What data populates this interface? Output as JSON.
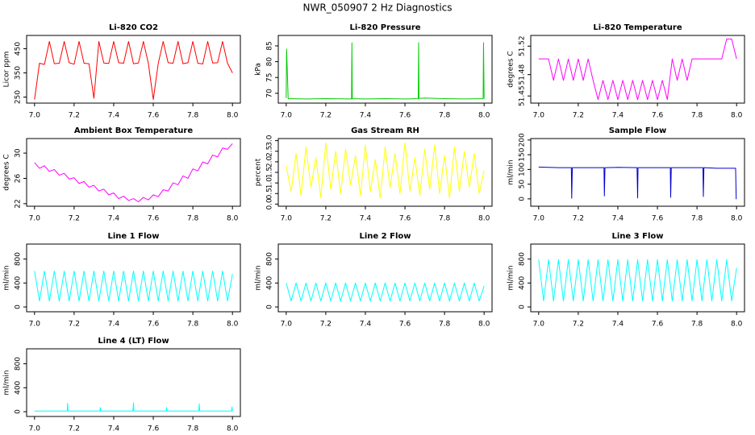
{
  "title": "NWR_050907  2 Hz Diagnostics",
  "chart_data": [
    {
      "type": "line",
      "title": "Li-820 CO2",
      "ylabel": "Licor ppm",
      "color": "#ff0000",
      "x": [
        7.0,
        7.025,
        7.05,
        7.075,
        7.1,
        7.125,
        7.15,
        7.175,
        7.2,
        7.225,
        7.25,
        7.275,
        7.3,
        7.325,
        7.35,
        7.375,
        7.4,
        7.425,
        7.45,
        7.475,
        7.5,
        7.525,
        7.55,
        7.575,
        7.6,
        7.625,
        7.65,
        7.675,
        7.7,
        7.725,
        7.75,
        7.775,
        7.8,
        7.825,
        7.85,
        7.875,
        7.9,
        7.925,
        7.95,
        7.975,
        8.0
      ],
      "values": [
        240,
        390,
        385,
        480,
        388,
        390,
        480,
        392,
        386,
        480,
        390,
        388,
        245,
        480,
        391,
        389,
        480,
        392,
        390,
        480,
        388,
        391,
        480,
        390,
        240,
        389,
        480,
        392,
        390,
        480,
        388,
        392,
        480,
        390,
        387,
        480,
        391,
        392,
        480,
        390,
        350
      ],
      "xlim": [
        6.96,
        8.04
      ],
      "xticks": [
        {
          "value": 7,
          "label": "7.0"
        },
        7.2,
        7.4,
        7.6,
        7.8,
        {
          "value": 8,
          "label": "8.0"
        }
      ],
      "ylim": [
        225,
        505
      ],
      "yticks": [
        250,
        350,
        450
      ]
    },
    {
      "type": "line",
      "title": "Li-820 Pressure",
      "ylabel": "kPa",
      "color": "#00cc00",
      "x": [
        7.0,
        7.002,
        7.01,
        7.1,
        7.2,
        7.33,
        7.332,
        7.334,
        7.4,
        7.5,
        7.6,
        7.667,
        7.669,
        7.671,
        7.7,
        7.8,
        7.9,
        7.995,
        7.997,
        8.0
      ],
      "values": [
        68.5,
        84,
        68.3,
        68.2,
        68.3,
        68.2,
        86,
        68.3,
        68.2,
        68.3,
        68.2,
        68.3,
        86,
        68.4,
        68.5,
        68.3,
        68.2,
        68.3,
        86,
        68.3
      ],
      "xlim": [
        6.96,
        8.04
      ],
      "xticks": [
        {
          "value": 7,
          "label": "7.0"
        },
        7.2,
        7.4,
        7.6,
        7.8,
        {
          "value": 8,
          "label": "8.0"
        }
      ],
      "ylim": [
        66.9,
        88.3
      ],
      "yticks": [
        70,
        75,
        80,
        85
      ]
    },
    {
      "type": "line",
      "title": "Li-820 Temperature",
      "ylabel": "degrees C",
      "color": "#ff00ff",
      "x": [
        7.0,
        7.025,
        7.05,
        7.075,
        7.1,
        7.125,
        7.15,
        7.175,
        7.2,
        7.225,
        7.25,
        7.275,
        7.3,
        7.325,
        7.35,
        7.375,
        7.4,
        7.425,
        7.45,
        7.475,
        7.5,
        7.525,
        7.55,
        7.575,
        7.6,
        7.625,
        7.65,
        7.675,
        7.7,
        7.725,
        7.75,
        7.775,
        7.8,
        7.825,
        7.85,
        7.875,
        7.9,
        7.925,
        7.95,
        7.975,
        8.0
      ],
      "values": [
        51.502,
        51.502,
        51.502,
        51.472,
        51.502,
        51.472,
        51.502,
        51.472,
        51.502,
        51.472,
        51.502,
        51.472,
        51.445,
        51.472,
        51.445,
        51.472,
        51.445,
        51.472,
        51.445,
        51.472,
        51.445,
        51.472,
        51.445,
        51.472,
        51.445,
        51.472,
        51.445,
        51.502,
        51.472,
        51.502,
        51.472,
        51.502,
        51.502,
        51.502,
        51.502,
        51.502,
        51.502,
        51.502,
        51.53,
        51.53,
        51.502
      ],
      "xlim": [
        6.96,
        8.04
      ],
      "xticks": [
        {
          "value": 7,
          "label": "7.0"
        },
        7.2,
        7.4,
        7.6,
        7.8,
        {
          "value": 8,
          "label": "8.0"
        }
      ],
      "ylim": [
        51.44,
        51.535
      ],
      "yticks": [
        51.45,
        51.48,
        51.52
      ]
    },
    {
      "type": "line",
      "title": "Ambient Box Temperature",
      "ylabel": "degrees C",
      "color": "#ff00ff",
      "x": [
        7.0,
        7.025,
        7.05,
        7.075,
        7.1,
        7.125,
        7.15,
        7.175,
        7.2,
        7.225,
        7.25,
        7.275,
        7.3,
        7.325,
        7.35,
        7.375,
        7.4,
        7.425,
        7.45,
        7.475,
        7.5,
        7.525,
        7.55,
        7.575,
        7.6,
        7.625,
        7.65,
        7.675,
        7.7,
        7.725,
        7.75,
        7.775,
        7.8,
        7.825,
        7.85,
        7.875,
        7.9,
        7.925,
        7.95,
        7.975,
        8.0
      ],
      "values": [
        28.5,
        27.6,
        28.0,
        27.1,
        27.4,
        26.5,
        26.8,
        25.9,
        26.1,
        25.2,
        25.5,
        24.6,
        24.9,
        24.0,
        24.3,
        23.4,
        23.7,
        22.8,
        23.2,
        22.5,
        22.8,
        22.3,
        23.0,
        22.6,
        23.4,
        23.1,
        24.2,
        24.0,
        25.3,
        25.0,
        26.4,
        26.0,
        27.5,
        27.2,
        28.6,
        28.3,
        29.7,
        29.4,
        30.8,
        30.6,
        31.5
      ],
      "xlim": [
        6.96,
        8.04
      ],
      "xticks": [
        {
          "value": 7,
          "label": "7.0"
        },
        7.2,
        7.4,
        7.6,
        7.8,
        {
          "value": 8,
          "label": "8.0"
        }
      ],
      "ylim": [
        21.6,
        32.3
      ],
      "yticks": [
        22,
        26,
        30
      ]
    },
    {
      "type": "line",
      "title": "Gas Stream RH",
      "ylabel": "percent",
      "color": "#ffff00",
      "x": [
        7.0,
        7.025,
        7.05,
        7.075,
        7.1,
        7.125,
        7.15,
        7.175,
        7.2,
        7.225,
        7.25,
        7.275,
        7.3,
        7.325,
        7.35,
        7.375,
        7.4,
        7.425,
        7.45,
        7.475,
        7.5,
        7.525,
        7.55,
        7.575,
        7.6,
        7.625,
        7.65,
        7.675,
        7.7,
        7.725,
        7.75,
        7.775,
        7.8,
        7.825,
        7.85,
        7.875,
        7.9,
        7.925,
        7.95,
        7.975,
        8.0
      ],
      "values": [
        1.8,
        0.6,
        2.4,
        0.4,
        2.7,
        0.8,
        2.2,
        0.3,
        2.9,
        0.7,
        2.5,
        0.5,
        2.6,
        0.9,
        2.3,
        0.4,
        2.8,
        0.6,
        2.1,
        0.3,
        2.7,
        0.8,
        2.4,
        0.5,
        2.9,
        0.6,
        2.2,
        0.4,
        2.6,
        0.7,
        2.8,
        0.5,
        2.3,
        0.3,
        2.7,
        0.6,
        2.5,
        0.8,
        2.4,
        0.5,
        1.6
      ],
      "xlim": [
        6.96,
        8.04
      ],
      "xticks": [
        {
          "value": 7,
          "label": "7.0"
        },
        7.2,
        7.4,
        7.6,
        7.8,
        {
          "value": 8,
          "label": "8.0"
        }
      ],
      "ylim": [
        -0.1,
        3.1
      ],
      "yticks": [
        {
          "value": 0,
          "label": "0.0"
        },
        0.5,
        {
          "value": 1,
          "label": "1.0"
        },
        1.5,
        {
          "value": 2,
          "label": "2.0"
        },
        2.5,
        {
          "value": 3,
          "label": "3.0"
        }
      ]
    },
    {
      "type": "line",
      "title": "Sample Flow",
      "ylabel": "ml/min",
      "color": "#0000cc",
      "x": [
        7.0,
        7.1,
        7.165,
        7.167,
        7.17,
        7.25,
        7.33,
        7.332,
        7.335,
        7.4,
        7.497,
        7.5,
        7.502,
        7.6,
        7.665,
        7.667,
        7.67,
        7.75,
        7.83,
        7.832,
        7.835,
        7.9,
        7.995,
        7.998,
        8.0
      ],
      "values": [
        108,
        106,
        106,
        2,
        106,
        106,
        106,
        10,
        106,
        107,
        106,
        3,
        106,
        106,
        106,
        5,
        106,
        106,
        106,
        8,
        106,
        104,
        104,
        0,
        0
      ],
      "xlim": [
        6.96,
        8.04
      ],
      "xticks": [
        {
          "value": 7,
          "label": "7.0"
        },
        7.2,
        7.4,
        7.6,
        7.8,
        {
          "value": 8,
          "label": "8.0"
        }
      ],
      "ylim": [
        -25,
        205
      ],
      "yticks": [
        0,
        50,
        100,
        150,
        200
      ]
    },
    {
      "type": "line",
      "title": "Line 1 Flow",
      "ylabel": "ml/min",
      "color": "#00ffff",
      "x": [
        7.0,
        7.025,
        7.05,
        7.075,
        7.1,
        7.125,
        7.15,
        7.175,
        7.2,
        7.225,
        7.25,
        7.275,
        7.3,
        7.325,
        7.35,
        7.375,
        7.4,
        7.425,
        7.45,
        7.475,
        7.5,
        7.525,
        7.55,
        7.575,
        7.6,
        7.625,
        7.65,
        7.675,
        7.7,
        7.725,
        7.75,
        7.775,
        7.8,
        7.825,
        7.85,
        7.875,
        7.9,
        7.925,
        7.95,
        7.975,
        8.0
      ],
      "values": [
        600,
        100,
        600,
        100,
        600,
        100,
        600,
        100,
        600,
        100,
        600,
        100,
        600,
        100,
        600,
        100,
        600,
        100,
        600,
        100,
        600,
        100,
        600,
        100,
        600,
        100,
        600,
        100,
        600,
        100,
        600,
        100,
        600,
        100,
        600,
        100,
        600,
        100,
        600,
        100,
        550
      ],
      "xlim": [
        6.96,
        8.04
      ],
      "xticks": [
        {
          "value": 7,
          "label": "7.0"
        },
        7.2,
        7.4,
        7.6,
        7.8,
        {
          "value": 8,
          "label": "8.0"
        }
      ],
      "ylim": [
        -80,
        1050
      ],
      "yticks": [
        0,
        400,
        800
      ]
    },
    {
      "type": "line",
      "title": "Line 2 Flow",
      "ylabel": "ml/min",
      "color": "#00ffff",
      "x": [
        7.0,
        7.025,
        7.05,
        7.075,
        7.1,
        7.125,
        7.15,
        7.175,
        7.2,
        7.225,
        7.25,
        7.275,
        7.3,
        7.325,
        7.35,
        7.375,
        7.4,
        7.425,
        7.45,
        7.475,
        7.5,
        7.525,
        7.55,
        7.575,
        7.6,
        7.625,
        7.65,
        7.675,
        7.7,
        7.725,
        7.75,
        7.775,
        7.8,
        7.825,
        7.85,
        7.875,
        7.9,
        7.925,
        7.95,
        7.975,
        8.0
      ],
      "values": [
        400,
        100,
        400,
        100,
        400,
        100,
        400,
        100,
        400,
        100,
        400,
        100,
        400,
        100,
        400,
        100,
        400,
        100,
        400,
        100,
        400,
        100,
        400,
        100,
        400,
        100,
        400,
        100,
        400,
        100,
        400,
        100,
        400,
        100,
        400,
        100,
        400,
        100,
        400,
        100,
        350
      ],
      "xlim": [
        6.96,
        8.04
      ],
      "xticks": [
        {
          "value": 7,
          "label": "7.0"
        },
        7.2,
        7.4,
        7.6,
        7.8,
        {
          "value": 8,
          "label": "8.0"
        }
      ],
      "ylim": [
        -80,
        1050
      ],
      "yticks": [
        0,
        400,
        800
      ]
    },
    {
      "type": "line",
      "title": "Line 3 Flow",
      "ylabel": "ml/min",
      "color": "#00ffff",
      "x": [
        7.0,
        7.025,
        7.05,
        7.075,
        7.1,
        7.125,
        7.15,
        7.175,
        7.2,
        7.225,
        7.25,
        7.275,
        7.3,
        7.325,
        7.35,
        7.375,
        7.4,
        7.425,
        7.45,
        7.475,
        7.5,
        7.525,
        7.55,
        7.575,
        7.6,
        7.625,
        7.65,
        7.675,
        7.7,
        7.725,
        7.75,
        7.775,
        7.8,
        7.825,
        7.85,
        7.875,
        7.9,
        7.925,
        7.95,
        7.975,
        8.0
      ],
      "values": [
        790,
        100,
        790,
        100,
        790,
        100,
        790,
        100,
        790,
        100,
        790,
        100,
        790,
        100,
        790,
        100,
        790,
        100,
        790,
        100,
        790,
        100,
        790,
        100,
        790,
        100,
        790,
        100,
        790,
        100,
        790,
        100,
        790,
        100,
        790,
        100,
        790,
        100,
        790,
        100,
        650
      ],
      "xlim": [
        6.96,
        8.04
      ],
      "xticks": [
        {
          "value": 7,
          "label": "7.0"
        },
        7.2,
        7.4,
        7.6,
        7.8,
        {
          "value": 8,
          "label": "8.0"
        }
      ],
      "ylim": [
        -80,
        1050
      ],
      "yticks": [
        0,
        400,
        800
      ]
    },
    {
      "type": "line",
      "title": "Line 4 (LT) Flow",
      "ylabel": "ml/min",
      "color": "#00ffff",
      "x": [
        7.0,
        7.1,
        7.165,
        7.167,
        7.17,
        7.25,
        7.33,
        7.332,
        7.335,
        7.4,
        7.497,
        7.5,
        7.502,
        7.6,
        7.665,
        7.667,
        7.67,
        7.75,
        7.83,
        7.832,
        7.835,
        7.9,
        7.995,
        7.998,
        8.0
      ],
      "values": [
        10,
        10,
        10,
        140,
        10,
        10,
        10,
        70,
        10,
        10,
        10,
        150,
        10,
        10,
        10,
        70,
        10,
        10,
        10,
        130,
        10,
        10,
        10,
        80,
        10
      ],
      "xlim": [
        6.96,
        8.04
      ],
      "xticks": [
        {
          "value": 7,
          "label": "7.0"
        },
        7.2,
        7.4,
        7.6,
        7.8,
        {
          "value": 8,
          "label": "8.0"
        }
      ],
      "ylim": [
        -80,
        1050
      ],
      "yticks": [
        0,
        400,
        800
      ]
    }
  ]
}
